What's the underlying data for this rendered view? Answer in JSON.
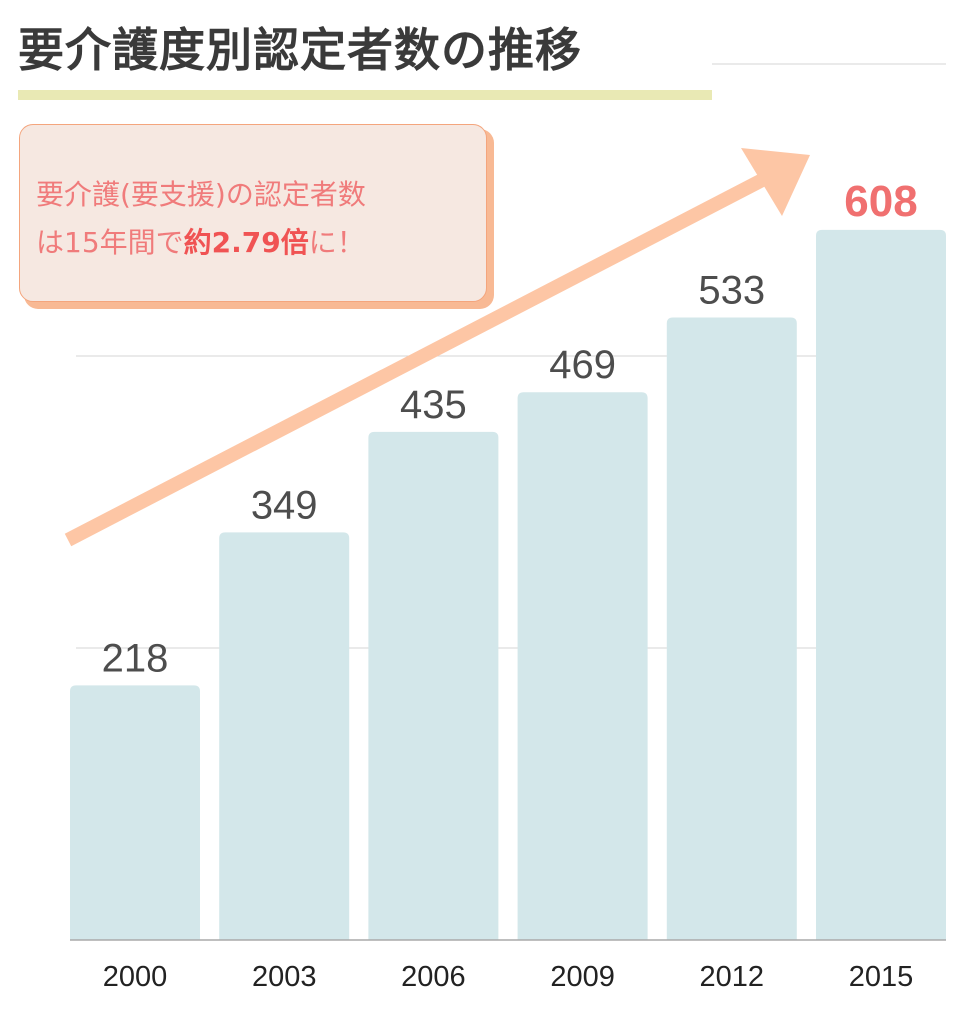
{
  "chart_data": {
    "type": "bar",
    "title": "要介護度別認定者数の推移",
    "categories": [
      "2000",
      "2003",
      "2006",
      "2009",
      "2012",
      "2015"
    ],
    "values": [
      218,
      349,
      435,
      469,
      533,
      608
    ],
    "ylim": [
      0,
      750
    ],
    "gridlines": [
      250,
      500,
      750
    ],
    "grid": true,
    "highlight_index": 5,
    "colors": {
      "bar": "#d3e7ea",
      "highlight_label": "#f07070",
      "label": "#4d4d4d",
      "arrow": "#fdc6a5",
      "grid": "#d6d6d6"
    },
    "annotation": {
      "line1": "要介護(要支援)の認定者数",
      "line2_pre": "は15年間で",
      "line2_bold": "約2.79倍",
      "line2_post": "に！"
    }
  }
}
